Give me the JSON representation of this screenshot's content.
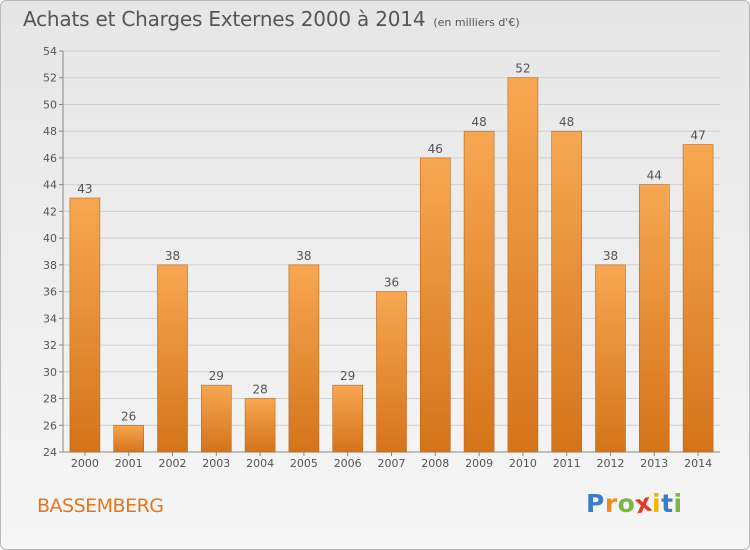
{
  "header": {
    "title": "Achats et Charges Externes 2000 à 2014",
    "unit": "(en milliers d'€)"
  },
  "commune": "BASSEMBERG",
  "logo": {
    "text": "Proxiti",
    "letters": [
      {
        "char": "P",
        "color": "#3a7fc6"
      },
      {
        "char": "r",
        "color": "#f08a1c"
      },
      {
        "char": "o",
        "color": "#7ab648"
      },
      {
        "char": "x",
        "color": "#e23b2a"
      },
      {
        "char": "i",
        "color": "#f4b400"
      },
      {
        "char": "t",
        "color": "#3a7fc6"
      },
      {
        "char": "i",
        "color": "#7ab648"
      }
    ]
  },
  "chart_data": {
    "type": "bar",
    "categories": [
      "2000",
      "2001",
      "2002",
      "2003",
      "2004",
      "2005",
      "2006",
      "2007",
      "2008",
      "2009",
      "2010",
      "2011",
      "2012",
      "2013",
      "2014"
    ],
    "values": [
      43,
      26,
      38,
      29,
      28,
      38,
      29,
      36,
      46,
      48,
      52,
      48,
      38,
      44,
      47
    ],
    "ylim": [
      24,
      54
    ],
    "yticks": [
      "24",
      "26",
      "28",
      "30",
      "32",
      "34",
      "36",
      "38",
      "40",
      "42",
      "44",
      "46",
      "48",
      "50",
      "52",
      "54"
    ],
    "grid": true,
    "colors": {
      "bar_top": "#f7a752",
      "bar_bottom": "#d4741a",
      "bar_edge": "#c0661a",
      "grid": "#d0d0d0",
      "text": "#555555"
    }
  }
}
